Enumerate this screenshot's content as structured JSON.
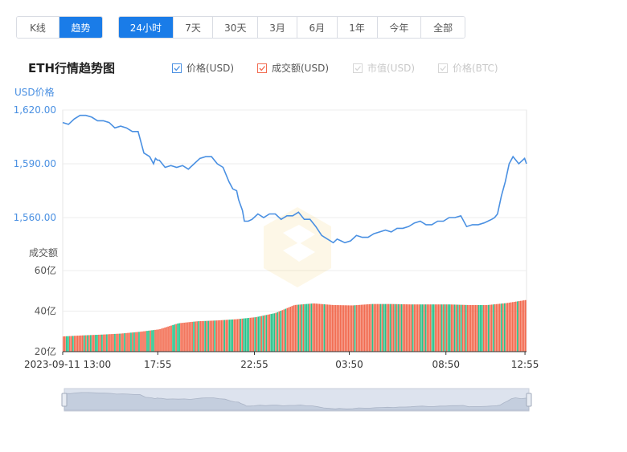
{
  "tabs": [
    {
      "label": "K线",
      "active": false
    },
    {
      "label": "趋势",
      "active": true
    }
  ],
  "ranges": [
    {
      "label": "24小时",
      "active": true
    },
    {
      "label": "7天",
      "active": false
    },
    {
      "label": "30天",
      "active": false
    },
    {
      "label": "3月",
      "active": false
    },
    {
      "label": "6月",
      "active": false
    },
    {
      "label": "1年",
      "active": false
    },
    {
      "label": "今年",
      "active": false
    },
    {
      "label": "全部",
      "active": false
    }
  ],
  "legend": [
    {
      "label": "价格(USD)",
      "checked": true,
      "color": "#4a90e2"
    },
    {
      "label": "成交额(USD)",
      "checked": true,
      "color": "#f26b50"
    },
    {
      "label": "市值(USD)",
      "checked": false,
      "color": "#cccccc"
    },
    {
      "label": "价格(BTC)",
      "checked": false,
      "color": "#cccccc"
    }
  ],
  "colors": {
    "accent": "#1a7ce8",
    "price_line": "#4a90e2",
    "vol_red": "#f26b50",
    "vol_green": "#26c28a"
  },
  "chart_data": {
    "type": "line",
    "title": "ETH行情趋势图",
    "price_axis_label": "USD价格",
    "price_ylim": [
      1560,
      1620
    ],
    "price_ticks": [
      "1,620.00",
      "1,590.00",
      "1,560.00"
    ],
    "price_tick_values": [
      1620,
      1590,
      1560
    ],
    "volume_axis_label": "成交额",
    "volume_ylim": [
      20,
      60
    ],
    "volume_ticks": [
      "60亿",
      "40亿",
      "20亿"
    ],
    "volume_tick_values": [
      60,
      40,
      20
    ],
    "x_ticks": [
      "2023-09-11 13:00",
      "17:55",
      "22:55",
      "03:50",
      "08:50",
      "12:55"
    ],
    "x_tick_hours": [
      0,
      4.92,
      9.92,
      14.83,
      19.83,
      23.92
    ],
    "x_range_hours": [
      0,
      24
    ],
    "grid": true,
    "price_series": {
      "name": "价格(USD)",
      "x": [
        0,
        0.3,
        0.6,
        0.9,
        1.2,
        1.5,
        1.8,
        2.1,
        2.4,
        2.7,
        3.0,
        3.3,
        3.6,
        3.9,
        4.2,
        4.5,
        4.7,
        4.8,
        4.9,
        5.0,
        5.3,
        5.6,
        5.9,
        6.2,
        6.5,
        6.8,
        7.1,
        7.4,
        7.7,
        8.0,
        8.3,
        8.6,
        8.8,
        9.0,
        9.1,
        9.3,
        9.4,
        9.6,
        9.8,
        10.1,
        10.4,
        10.7,
        11.0,
        11.3,
        11.6,
        11.9,
        12.2,
        12.5,
        12.8,
        13.1,
        13.4,
        13.7,
        14.0,
        14.2,
        14.4,
        14.6,
        14.9,
        15.2,
        15.5,
        15.8,
        16.1,
        16.4,
        16.7,
        17.0,
        17.3,
        17.6,
        17.9,
        18.2,
        18.5,
        18.8,
        19.1,
        19.4,
        19.7,
        20.0,
        20.3,
        20.6,
        20.9,
        21.2,
        21.5,
        21.8,
        22.0,
        22.2,
        22.35,
        22.5,
        22.7,
        22.9,
        23.1,
        23.3,
        23.6,
        23.9,
        24.0
      ],
      "y": [
        1613,
        1612,
        1615,
        1617,
        1617,
        1616,
        1614,
        1614,
        1613,
        1610,
        1611,
        1610,
        1608,
        1608,
        1596,
        1594,
        1590,
        1593,
        1592,
        1592,
        1588,
        1589,
        1588,
        1589,
        1587,
        1590,
        1593,
        1594,
        1594,
        1590,
        1588,
        1580,
        1576,
        1575,
        1570,
        1564,
        1558,
        1558,
        1559,
        1562,
        1560,
        1562,
        1562,
        1559,
        1561,
        1561,
        1563,
        1559,
        1559,
        1555,
        1550,
        1548,
        1546,
        1548,
        1547,
        1546,
        1547,
        1550,
        1549,
        1549,
        1551,
        1552,
        1553,
        1552,
        1554,
        1554,
        1555,
        1557,
        1558,
        1556,
        1556,
        1558,
        1558,
        1560,
        1560,
        1561,
        1555,
        1556,
        1556,
        1557,
        1558,
        1559,
        1560,
        1562,
        1572,
        1580,
        1590,
        1594,
        1590,
        1593,
        1590
      ]
    },
    "volume_series": {
      "name": "成交额(USD)",
      "x": [
        0,
        1,
        2,
        3,
        4,
        5,
        6,
        7,
        8,
        9,
        10,
        11,
        12,
        13,
        14,
        15,
        16,
        17,
        18,
        19,
        20,
        21,
        22,
        23,
        24
      ],
      "y": [
        27.5,
        28,
        28.4,
        28.9,
        29.8,
        31,
        34,
        35,
        35.4,
        36,
        37,
        39,
        43,
        43.8,
        43,
        42.8,
        43.5,
        43.5,
        43.3,
        43.3,
        43.3,
        43,
        43,
        44,
        45.5
      ]
    }
  }
}
